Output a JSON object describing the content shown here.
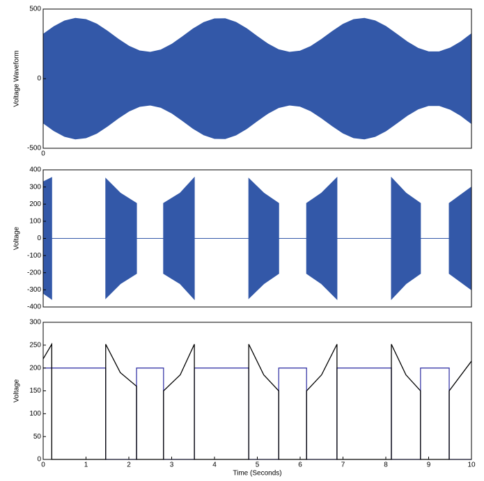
{
  "chart_data": [
    {
      "type": "area_band",
      "ylabel": "Voltage Waveform",
      "x": [
        0,
        0.25,
        0.5,
        0.75,
        1,
        1.25,
        1.5,
        1.75,
        2,
        2.25,
        2.5,
        2.75,
        3,
        3.25,
        3.5,
        3.75,
        4,
        4.25,
        4.5,
        4.75,
        5,
        5.25,
        5.5,
        5.75,
        6,
        6.25,
        6.5,
        6.75,
        7,
        7.25,
        7.5,
        7.75,
        8,
        8.25,
        8.5,
        8.75,
        9,
        9.25,
        9.5,
        9.75,
        10
      ],
      "series": [
        {
          "color": "#3358a8",
          "values": [
            319,
            374,
            415,
            434,
            425,
            393,
            342,
            285,
            234,
            200,
            190,
            207,
            247,
            301,
            358,
            404,
            430,
            431,
            405,
            360,
            303,
            249,
            208,
            190,
            199,
            232,
            283,
            339,
            391,
            425,
            434,
            416,
            376,
            321,
            265,
            219,
            193,
            194,
            220,
            265,
            323
          ]
        },
        {
          "color": "#3358a8",
          "values": [
            -319,
            -374,
            -415,
            -434,
            -425,
            -393,
            -342,
            -285,
            -234,
            -200,
            -190,
            -207,
            -247,
            -301,
            -358,
            -404,
            -430,
            -431,
            -405,
            -360,
            -303,
            -249,
            -208,
            -190,
            -199,
            -232,
            -283,
            -339,
            -391,
            -425,
            -434,
            -416,
            -376,
            -321,
            -265,
            -219,
            -193,
            -194,
            -220,
            -265,
            -323
          ]
        }
      ],
      "xlim": [
        0,
        10
      ],
      "xticks": [
        0
      ],
      "ylim": [
        -500,
        500
      ],
      "yticks": [
        -500,
        0,
        500
      ]
    },
    {
      "type": "area_band",
      "ylabel": "Voltage",
      "x": [
        0,
        0.2,
        0.2,
        1.46,
        1.46,
        1.8,
        2.18,
        2.18,
        2.81,
        2.81,
        3.2,
        3.53,
        3.53,
        4.8,
        4.8,
        5.15,
        5.5,
        5.5,
        6.15,
        6.15,
        6.5,
        6.86,
        6.86,
        8.13,
        8.13,
        8.47,
        8.81,
        8.81,
        9.48,
        9.48,
        10
      ],
      "series": [
        {
          "color": "#3358a8",
          "values": [
            330,
            355,
            0,
            0,
            350,
            265,
            205,
            0,
            0,
            205,
            265,
            355,
            0,
            0,
            350,
            265,
            205,
            0,
            0,
            205,
            265,
            355,
            0,
            0,
            355,
            265,
            205,
            0,
            0,
            205,
            300
          ]
        },
        {
          "color": "#3358a8",
          "values": [
            -320,
            -355,
            0,
            0,
            -350,
            -265,
            -205,
            0,
            0,
            -205,
            -265,
            -355,
            0,
            0,
            -350,
            -265,
            -205,
            0,
            0,
            -205,
            -265,
            -355,
            0,
            0,
            -355,
            -265,
            -205,
            0,
            0,
            -205,
            -300
          ]
        }
      ],
      "xlim": [
        0,
        10
      ],
      "ylim": [
        -400,
        400
      ],
      "yticks": [
        -400,
        -300,
        -200,
        -100,
        0,
        100,
        200,
        300,
        400
      ]
    },
    {
      "type": "line",
      "ylabel": "Voltage",
      "xlabel": "Time (Seconds)",
      "series": [
        {
          "color": "#3a3aa8",
          "x": [
            0,
            1.46,
            1.46,
            2.18,
            2.18,
            2.81,
            2.81,
            3.53,
            3.53,
            4.8,
            4.8,
            5.5,
            5.5,
            6.15,
            6.15,
            6.86,
            6.86,
            8.13,
            8.13,
            8.81,
            8.81,
            9.48,
            9.48,
            10
          ],
          "values": [
            200,
            200,
            0,
            0,
            200,
            200,
            0,
            0,
            200,
            200,
            0,
            0,
            200,
            200,
            0,
            0,
            200,
            200,
            0,
            0,
            200,
            200,
            0,
            0
          ]
        },
        {
          "color": "#000000",
          "x": [
            0,
            0.2,
            0.2,
            1.46,
            1.46,
            1.8,
            2.18,
            2.18,
            2.81,
            2.81,
            3.2,
            3.53,
            3.53,
            4.8,
            4.8,
            5.15,
            5.5,
            5.5,
            6.15,
            6.15,
            6.5,
            6.86,
            6.86,
            8.13,
            8.13,
            8.47,
            8.81,
            8.81,
            9.48,
            9.48,
            10
          ],
          "values": [
            220,
            252,
            0,
            0,
            252,
            190,
            160,
            0,
            0,
            150,
            185,
            252,
            0,
            0,
            252,
            185,
            150,
            0,
            0,
            150,
            185,
            252,
            0,
            0,
            252,
            185,
            150,
            0,
            0,
            150,
            215
          ]
        }
      ],
      "xlim": [
        0,
        10
      ],
      "xticks": [
        0,
        1,
        2,
        3,
        4,
        5,
        6,
        7,
        8,
        9,
        10
      ],
      "ylim": [
        0,
        300
      ],
      "yticks": [
        0,
        50,
        100,
        150,
        200,
        250,
        300
      ]
    }
  ]
}
